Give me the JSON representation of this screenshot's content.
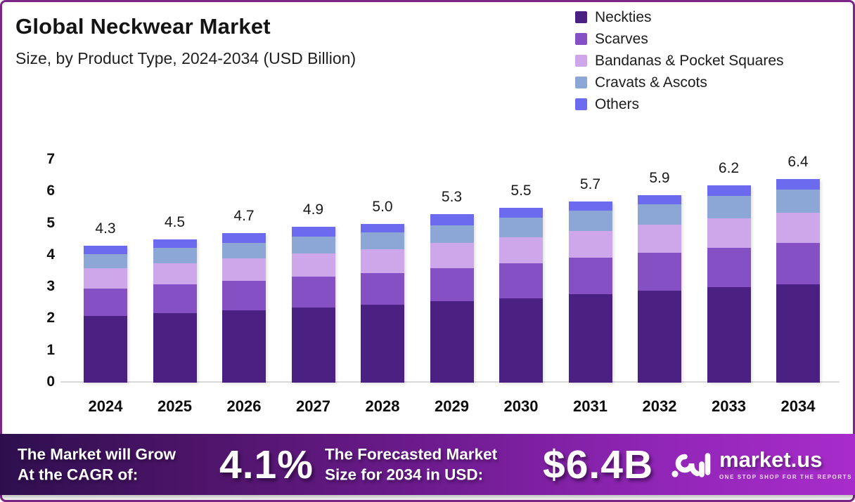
{
  "header": {
    "title": "Global Neckwear Market",
    "subtitle": "Size, by Product Type, 2024-2034 (USD Billion)"
  },
  "chart_data": {
    "type": "bar",
    "stacked": true,
    "title": "Global Neckwear Market Size, by Product Type, 2024-2034 (USD Billion)",
    "categories": [
      "2024",
      "2025",
      "2026",
      "2027",
      "2028",
      "2029",
      "2030",
      "2031",
      "2032",
      "2033",
      "2034"
    ],
    "series": [
      {
        "name": "Neckties",
        "color": "#4a2083",
        "values": [
          2.1,
          2.18,
          2.27,
          2.36,
          2.45,
          2.55,
          2.65,
          2.78,
          2.9,
          3.0,
          3.1
        ]
      },
      {
        "name": "Scarves",
        "color": "#8650c5",
        "values": [
          0.85,
          0.9,
          0.93,
          0.97,
          1.0,
          1.05,
          1.1,
          1.15,
          1.18,
          1.25,
          1.3
        ]
      },
      {
        "name": "Bandanas & Pocket Squares",
        "color": "#cda7e9",
        "values": [
          0.65,
          0.68,
          0.7,
          0.73,
          0.75,
          0.8,
          0.83,
          0.85,
          0.88,
          0.92,
          0.95
        ]
      },
      {
        "name": "Cravats & Ascots",
        "color": "#8ca6d5",
        "values": [
          0.45,
          0.47,
          0.5,
          0.54,
          0.52,
          0.55,
          0.6,
          0.62,
          0.64,
          0.71,
          0.73
        ]
      },
      {
        "name": "Others",
        "color": "#6c6aee",
        "values": [
          0.25,
          0.27,
          0.3,
          0.3,
          0.28,
          0.35,
          0.32,
          0.3,
          0.3,
          0.32,
          0.32
        ]
      }
    ],
    "total_labels": [
      "4.3",
      "4.5",
      "4.7",
      "4.9",
      "5.0",
      "5.3",
      "5.5",
      "5.7",
      "5.9",
      "6.2",
      "6.4"
    ],
    "ylim": [
      0,
      7
    ],
    "yticks": [
      0,
      1,
      2,
      3,
      4,
      5,
      6,
      7
    ],
    "grid": false,
    "legend_position": "top-right"
  },
  "banner": {
    "cagr_label_line1": "The Market will Grow",
    "cagr_label_line2": "At the CAGR of:",
    "cagr_value": "4.1%",
    "forecast_label_line1": "The Forecasted Market",
    "forecast_label_line2": "Size for 2034 in USD:",
    "forecast_value": "$6.4B",
    "logo_text": "market.us",
    "logo_tagline": "ONE STOP SHOP FOR THE REPORTS"
  },
  "colors": {
    "border": "#7b2687",
    "banner_gradient_left": "#2e0f4e",
    "banner_gradient_right": "#a82cca",
    "axis_line": "#d9d9d9"
  }
}
